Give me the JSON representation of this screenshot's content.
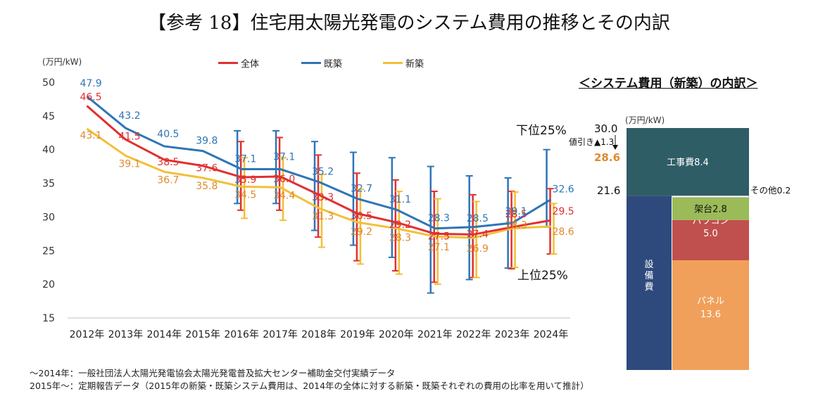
{
  "page": {
    "title": "【参考 18】住宅用太陽光発電のシステム費用の推移とその内訳",
    "notes": [
      "～2014年：一般社団法人太陽光発電協会太陽光発電普及拡大センター補助金交付実績データ",
      "2015年～：定期報告データ（2015年の新築・既築システム費用は、2014年の全体に対する新築・既築それぞれの費用の比率を用いて推計）"
    ]
  },
  "chart_data": [
    {
      "type": "line",
      "unit_label": "(万円/kW)",
      "ylim": [
        15,
        50
      ],
      "yticks": [
        15,
        20,
        25,
        30,
        35,
        40,
        45,
        50
      ],
      "grid": false,
      "legend_position": "top",
      "categories": [
        "2012年",
        "2013年",
        "2014年",
        "2015年",
        "2016年",
        "2017年",
        "2018年",
        "2019年",
        "2020年",
        "2021年",
        "2022年",
        "2023年",
        "2024年"
      ],
      "series": [
        {
          "name": "全体",
          "color": "#e03030",
          "label_color": "#e03030",
          "values": [
            46.5,
            41.5,
            38.5,
            37.6,
            35.9,
            36.0,
            33.3,
            30.5,
            29.2,
            27.5,
            27.4,
            28.5,
            29.5
          ]
        },
        {
          "name": "既築",
          "color": "#2e75b6",
          "label_color": "#2e75b6",
          "values": [
            47.9,
            43.2,
            40.5,
            39.8,
            37.1,
            37.1,
            35.2,
            32.7,
            31.1,
            28.3,
            28.5,
            29.1,
            32.6
          ]
        },
        {
          "name": "新築",
          "color": "#f2c037",
          "label_color": "#e08a2e",
          "values": [
            43.1,
            39.1,
            36.7,
            35.8,
            34.5,
            34.4,
            31.3,
            29.2,
            28.3,
            27.1,
            26.9,
            28.3,
            28.6
          ]
        }
      ],
      "interquartile_ranges": {
        "years": [
          "2016年",
          "2017年",
          "2018年",
          "2019年",
          "2020年",
          "2021年",
          "2022年",
          "2023年",
          "2024年"
        ],
        "全体": [
          [
            31.0,
            41.2
          ],
          [
            31.0,
            41.8
          ],
          [
            27.0,
            39.2
          ],
          [
            23.5,
            36.5
          ],
          [
            22.0,
            35.5
          ],
          [
            20.3,
            33.8
          ],
          [
            21.0,
            33.3
          ],
          [
            22.3,
            33.8
          ],
          [
            24.5,
            34.2
          ]
        ],
        "既築": [
          [
            32.0,
            42.8
          ],
          [
            32.0,
            42.8
          ],
          [
            28.0,
            41.2
          ],
          [
            25.8,
            39.6
          ],
          [
            24.0,
            38.8
          ],
          [
            18.7,
            37.5
          ],
          [
            20.7,
            36.1
          ],
          [
            22.4,
            35.8
          ],
          [
            28.5,
            40.0
          ]
        ],
        "新築": [
          [
            29.8,
            38.8
          ],
          [
            29.5,
            38.8
          ],
          [
            25.5,
            36.3
          ],
          [
            23.0,
            34.1
          ],
          [
            21.5,
            33.8
          ],
          [
            20.0,
            32.7
          ],
          [
            21.0,
            32.3
          ],
          [
            22.5,
            33.7
          ],
          [
            24.5,
            32.0
          ]
        ]
      },
      "annotations": {
        "upper": "下位25%",
        "lower": "上位25%"
      }
    },
    {
      "type": "bar",
      "title": "＜システム費用（新築）の内訳＞",
      "unit_label": "(万円/kW)",
      "total": "30.0",
      "after_discount": "28.6",
      "discount_label": "値引き▲1.3",
      "level_label": "21.6",
      "segments": [
        {
          "name": "工事費",
          "value": 8.4,
          "label": "工事費8.4",
          "color": "#2f5d66"
        },
        {
          "name": "設備費",
          "value": 21.6,
          "label": "設備費",
          "color": "#2e4a7d"
        },
        {
          "name": "その他",
          "value": 0.2,
          "label": "その他0.2",
          "color": "#ffffff"
        },
        {
          "name": "架台",
          "value": 2.8,
          "label": "架台2.8",
          "color": "#9bbb59"
        },
        {
          "name": "パワコン",
          "value": 5.0,
          "label_line1": "パワコン",
          "label_line2": "5.0",
          "color": "#c0504d"
        },
        {
          "name": "パネル",
          "value": 13.6,
          "label_line1": "パネル",
          "label_line2": "13.6",
          "color": "#f0a05a"
        }
      ]
    }
  ]
}
